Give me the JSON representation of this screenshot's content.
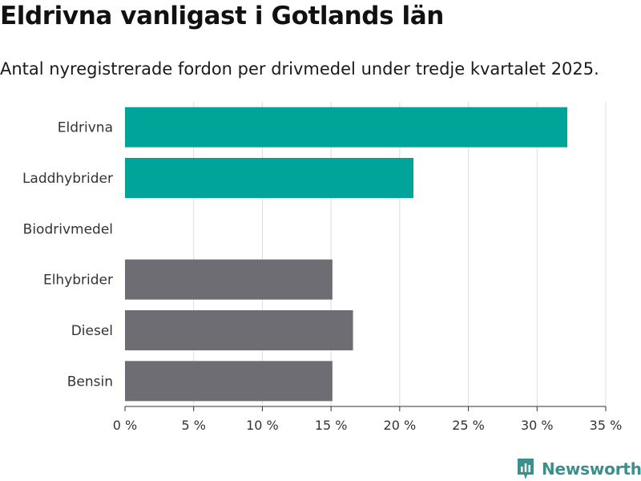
{
  "header": {
    "title": "Eldrivna vanligast i Gotlands län",
    "subtitle": "Antal nyregistrerade fordon per drivmedel under tredje kvartalet 2025."
  },
  "brand": {
    "name": "Newsworthy",
    "icon": "newsworthy-logo-icon",
    "color": "#3b8f8c"
  },
  "colors": {
    "highlight": "#00a499",
    "neutral": "#6e6d73",
    "grid": "#dddddd",
    "axis": "#333333"
  },
  "chart_data": {
    "type": "bar",
    "orientation": "horizontal",
    "title": "Eldrivna vanligast i Gotlands län",
    "subtitle": "Antal nyregistrerade fordon per drivmedel under tredje kvartalet 2025.",
    "categories": [
      "Eldrivna",
      "Laddhybrider",
      "Biodrivmedel",
      "Elhybrider",
      "Diesel",
      "Bensin"
    ],
    "values": [
      32.2,
      21.0,
      0,
      15.1,
      16.6,
      15.1
    ],
    "highlight": [
      true,
      true,
      false,
      false,
      false,
      false
    ],
    "xlim": [
      0,
      35
    ],
    "ticks": [
      0,
      5,
      10,
      15,
      20,
      25,
      30,
      35
    ],
    "tick_labels": [
      "0 %",
      "5 %",
      "10 %",
      "15 %",
      "20 %",
      "25 %",
      "30 %",
      "35 %"
    ],
    "unit": "%",
    "grid": true,
    "xlabel": "",
    "ylabel": ""
  }
}
